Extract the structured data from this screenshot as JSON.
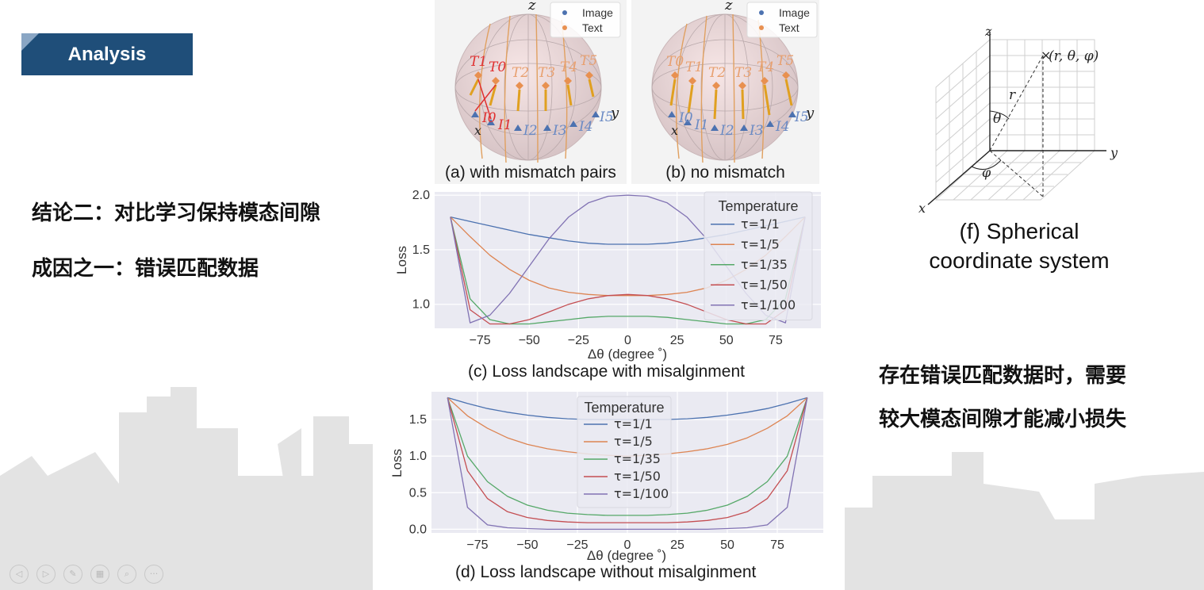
{
  "slide": {
    "tag_label": "Analysis",
    "conclusion": "结论二：对比学习保持模态间隙",
    "cause": "成因之一：错误匹配数据",
    "right_note_line1": "存在错误匹配数据时，需要",
    "right_note_line2": "较大模态间隙才能减小损失",
    "accent_color": "#1f4e79"
  },
  "figures": {
    "a": {
      "caption": "(a) with mismatch pairs",
      "legend": [
        "Image",
        "Text"
      ],
      "axes": [
        "z",
        "x",
        "y"
      ],
      "text_labels": [
        "T1",
        "T0",
        "T2",
        "T3",
        "T4",
        "T5"
      ],
      "image_labels": [
        "I0",
        "I1",
        "I2",
        "I3",
        "I4",
        "I5"
      ]
    },
    "b": {
      "caption": "(b) no mismatch",
      "legend": [
        "Image",
        "Text"
      ],
      "axes": [
        "z",
        "x",
        "y"
      ],
      "text_labels": [
        "T0",
        "T1",
        "T2",
        "T3",
        "T4",
        "T5"
      ],
      "image_labels": [
        "I0",
        "I1",
        "I2",
        "I3",
        "I4",
        "I5"
      ]
    },
    "c": {
      "caption": "(c) Loss landscape with misalginment"
    },
    "d": {
      "caption": "(d) Loss landscape without misalginment"
    },
    "f": {
      "caption_line1": "(f) Spherical",
      "caption_line2": "coordinate system",
      "point_label": "(r, θ, φ)",
      "r_label": "r",
      "theta_label": "θ",
      "phi_label": "φ",
      "axis_x": "x",
      "axis_y": "y",
      "axis_z": "z"
    }
  },
  "chart_data": [
    {
      "id": "c",
      "type": "line",
      "title": "(c) Loss landscape with misalginment",
      "xlabel": "Δθ (degree ˚)",
      "ylabel": "Loss",
      "xlim": [
        -98,
        98
      ],
      "ylim": [
        0.78,
        2.03
      ],
      "xticks": [
        -75,
        -50,
        -25,
        0,
        25,
        50,
        75
      ],
      "xtick_labels": [
        "−75",
        "−50",
        "−25",
        "0",
        "25",
        "50",
        "75"
      ],
      "yticks": [
        1.0,
        1.5,
        2.0
      ],
      "ytick_labels": [
        "1.0",
        "1.5",
        "2.0"
      ],
      "grid": true,
      "legend_title": "Temperature",
      "legend_position": "top-right",
      "x": [
        -90,
        -80,
        -70,
        -60,
        -50,
        -40,
        -30,
        -20,
        -10,
        0,
        10,
        20,
        30,
        40,
        50,
        60,
        70,
        80,
        90
      ],
      "series": [
        {
          "name": "τ=1/1",
          "color": "#4c72b0",
          "values": [
            1.8,
            1.76,
            1.72,
            1.68,
            1.64,
            1.61,
            1.58,
            1.56,
            1.55,
            1.55,
            1.55,
            1.56,
            1.58,
            1.61,
            1.64,
            1.68,
            1.72,
            1.76,
            1.8
          ]
        },
        {
          "name": "τ=1/5",
          "color": "#dd8452",
          "values": [
            1.8,
            1.62,
            1.45,
            1.32,
            1.22,
            1.15,
            1.11,
            1.09,
            1.08,
            1.08,
            1.08,
            1.09,
            1.11,
            1.15,
            1.22,
            1.32,
            1.45,
            1.62,
            1.8
          ]
        },
        {
          "name": "τ=1/35",
          "color": "#55a868",
          "values": [
            1.8,
            1.05,
            0.86,
            0.82,
            0.82,
            0.84,
            0.86,
            0.88,
            0.89,
            0.89,
            0.89,
            0.88,
            0.86,
            0.84,
            0.82,
            0.82,
            0.86,
            1.05,
            1.8
          ]
        },
        {
          "name": "τ=1/50",
          "color": "#c44e52",
          "values": [
            1.8,
            0.95,
            0.82,
            0.82,
            0.86,
            0.93,
            1.0,
            1.05,
            1.08,
            1.09,
            1.08,
            1.05,
            1.0,
            0.93,
            0.86,
            0.82,
            0.82,
            0.95,
            1.8
          ]
        },
        {
          "name": "τ=1/100",
          "color": "#8172b3",
          "values": [
            1.8,
            0.83,
            0.9,
            1.1,
            1.35,
            1.6,
            1.8,
            1.93,
            1.99,
            2.0,
            1.99,
            1.93,
            1.8,
            1.6,
            1.35,
            1.1,
            0.9,
            0.83,
            1.8
          ]
        }
      ]
    },
    {
      "id": "d",
      "type": "line",
      "title": "(d) Loss landscape without misalginment",
      "xlabel": "Δθ (degree ˚)",
      "ylabel": "Loss",
      "xlim": [
        -98,
        98
      ],
      "ylim": [
        -0.05,
        1.88
      ],
      "xticks": [
        -75,
        -50,
        -25,
        0,
        25,
        50,
        75
      ],
      "xtick_labels": [
        "−75",
        "−50",
        "−25",
        "0",
        "25",
        "50",
        "75"
      ],
      "yticks": [
        0.0,
        0.5,
        1.0,
        1.5
      ],
      "ytick_labels": [
        "0.0",
        "0.5",
        "1.0",
        "1.5"
      ],
      "grid": true,
      "legend_title": "Temperature",
      "legend_position": "top-center",
      "x": [
        -90,
        -80,
        -70,
        -60,
        -50,
        -40,
        -30,
        -20,
        -10,
        0,
        10,
        20,
        30,
        40,
        50,
        60,
        70,
        80,
        90
      ],
      "series": [
        {
          "name": "τ=1/1",
          "color": "#4c72b0",
          "values": [
            1.8,
            1.72,
            1.65,
            1.6,
            1.56,
            1.53,
            1.51,
            1.5,
            1.5,
            1.5,
            1.5,
            1.5,
            1.51,
            1.53,
            1.56,
            1.6,
            1.65,
            1.72,
            1.8
          ]
        },
        {
          "name": "τ=1/5",
          "color": "#dd8452",
          "values": [
            1.8,
            1.55,
            1.38,
            1.25,
            1.16,
            1.1,
            1.06,
            1.03,
            1.01,
            1.0,
            1.01,
            1.03,
            1.06,
            1.1,
            1.16,
            1.25,
            1.38,
            1.55,
            1.8
          ]
        },
        {
          "name": "τ=1/35",
          "color": "#55a868",
          "values": [
            1.8,
            1.0,
            0.65,
            0.45,
            0.33,
            0.26,
            0.22,
            0.2,
            0.19,
            0.19,
            0.19,
            0.2,
            0.22,
            0.26,
            0.33,
            0.45,
            0.65,
            1.0,
            1.8
          ]
        },
        {
          "name": "τ=1/50",
          "color": "#c44e52",
          "values": [
            1.8,
            0.8,
            0.42,
            0.24,
            0.16,
            0.12,
            0.1,
            0.09,
            0.09,
            0.09,
            0.09,
            0.09,
            0.1,
            0.12,
            0.16,
            0.24,
            0.42,
            0.8,
            1.8
          ]
        },
        {
          "name": "τ=1/100",
          "color": "#8172b3",
          "values": [
            1.8,
            0.3,
            0.06,
            0.02,
            0.01,
            0.0,
            0.0,
            0.0,
            0.0,
            0.0,
            0.0,
            0.0,
            0.0,
            0.0,
            0.01,
            0.02,
            0.06,
            0.3,
            1.8
          ]
        }
      ]
    }
  ],
  "player_controls": [
    {
      "icon": "previous-icon",
      "glyph": "◁"
    },
    {
      "icon": "play-icon",
      "glyph": "▷"
    },
    {
      "icon": "pen-icon",
      "glyph": "✎"
    },
    {
      "icon": "slides-icon",
      "glyph": "▦"
    },
    {
      "icon": "zoom-icon",
      "glyph": "⌕"
    },
    {
      "icon": "more-icon",
      "glyph": "···"
    }
  ]
}
